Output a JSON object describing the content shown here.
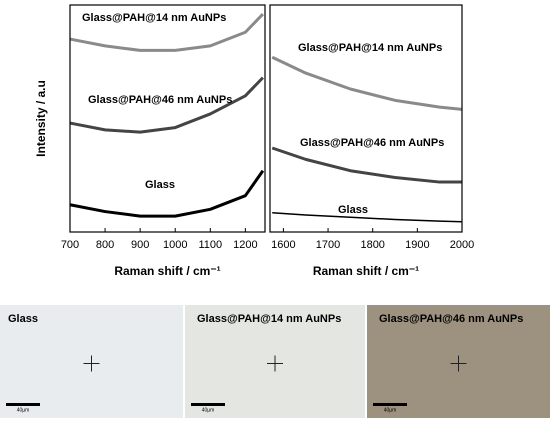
{
  "chart_data": [
    {
      "type": "line",
      "y_label": "Intensity / a.u",
      "x_label": "Raman shift / cm⁻¹",
      "xlim": [
        700,
        1256
      ],
      "xticks": [
        700,
        800,
        900,
        1000,
        1100,
        1200
      ],
      "ylim": [
        0,
        100
      ],
      "x": [
        700,
        800,
        900,
        1000,
        1100,
        1200,
        1250
      ],
      "series": [
        {
          "name": "Glass@PAH@14 nm AuNPs",
          "color": "#8a8a8a",
          "values": [
            85,
            82,
            80,
            80,
            82,
            88,
            96
          ]
        },
        {
          "name": "Glass@PAH@46 nm AuNPs",
          "color": "#444444",
          "values": [
            48,
            45,
            44,
            46,
            52,
            60,
            68
          ]
        },
        {
          "name": "Glass",
          "color": "#000000",
          "values": [
            12,
            9,
            7,
            7,
            10,
            16,
            27
          ]
        }
      ]
    },
    {
      "type": "line",
      "x_label": "Raman shift / cm⁻¹",
      "xlim": [
        1570,
        2000
      ],
      "xticks": [
        1600,
        1700,
        1800,
        1900,
        2000
      ],
      "ylim": [
        0,
        100
      ],
      "x": [
        1575,
        1650,
        1750,
        1850,
        1950,
        2000
      ],
      "series": [
        {
          "name": "Glass@PAH@14 nm AuNPs",
          "color": "#8a8a8a",
          "values": [
            77,
            70,
            63,
            58,
            55,
            54
          ]
        },
        {
          "name": "Glass@PAH@46 nm AuNPs",
          "color": "#444444",
          "values": [
            37,
            32,
            27,
            24,
            22,
            22
          ]
        },
        {
          "name": "Glass",
          "color": "#000000",
          "values": [
            8.5,
            7.5,
            6.5,
            5.5,
            4.8,
            4.5
          ]
        }
      ]
    }
  ],
  "images": [
    {
      "label": "Glass",
      "scale": "40µm"
    },
    {
      "label": "Glass@PAH@14 nm AuNPs",
      "scale": "40µm"
    },
    {
      "label": "Glass@PAH@46 nm AuNPs",
      "scale": "40µm"
    }
  ]
}
